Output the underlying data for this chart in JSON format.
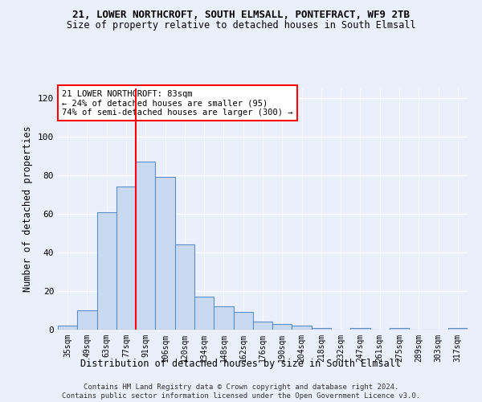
{
  "title": "21, LOWER NORTHCROFT, SOUTH ELMSALL, PONTEFRACT, WF9 2TB",
  "subtitle": "Size of property relative to detached houses in South Elmsall",
  "xlabel": "Distribution of detached houses by size in South Elmsall",
  "ylabel": "Number of detached properties",
  "bar_color": "#c8d9f0",
  "bar_edge_color": "#5b8fc9",
  "categories": [
    "35sqm",
    "49sqm",
    "63sqm",
    "77sqm",
    "91sqm",
    "106sqm",
    "120sqm",
    "134sqm",
    "148sqm",
    "162sqm",
    "176sqm",
    "190sqm",
    "204sqm",
    "218sqm",
    "232sqm",
    "247sqm",
    "261sqm",
    "275sqm",
    "289sqm",
    "303sqm",
    "317sqm"
  ],
  "values": [
    2,
    10,
    61,
    74,
    87,
    79,
    44,
    17,
    12,
    9,
    4,
    3,
    2,
    1,
    0,
    1,
    0,
    1,
    0,
    0,
    1
  ],
  "ylim": [
    0,
    125
  ],
  "yticks": [
    0,
    20,
    40,
    60,
    80,
    100,
    120
  ],
  "vline_color": "red",
  "vline_x": 3.5,
  "annotation_text": "21 LOWER NORTHCROFT: 83sqm\n← 24% of detached houses are smaller (95)\n74% of semi-detached houses are larger (300) →",
  "annotation_box_color": "white",
  "annotation_box_edge_color": "red",
  "footer1": "Contains HM Land Registry data © Crown copyright and database right 2024.",
  "footer2": "Contains public sector information licensed under the Open Government Licence v3.0.",
  "background_color": "#eaf0fb",
  "grid_color": "white"
}
